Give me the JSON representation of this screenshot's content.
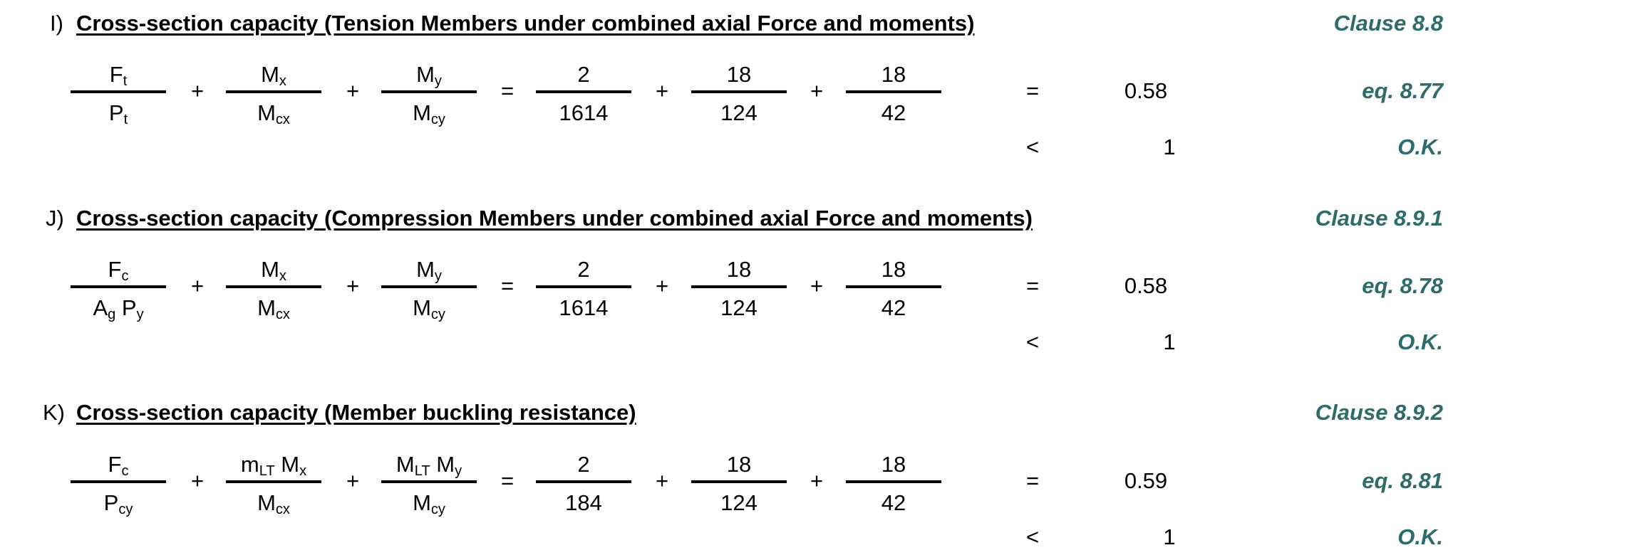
{
  "sections": [
    {
      "letter": "I)",
      "title": "Cross-section capacity (Tension Members under combined axial Force and moments)",
      "clause": "Clause 8.8",
      "equation_ref": "eq. 8.77",
      "result": "0.58",
      "comparator": "<",
      "limit": "1",
      "status": "O.K.",
      "terms": [
        {
          "num": "F",
          "num_sub": "t",
          "den": "P",
          "den_sub": "t"
        },
        {
          "num": "M",
          "num_sub": "x",
          "den": "M",
          "den_sub": "cx"
        },
        {
          "num": "M",
          "num_sub": "y",
          "den": "M",
          "den_sub": "cy"
        }
      ],
      "values": [
        {
          "num": "2",
          "den": "1614"
        },
        {
          "num": "18",
          "den": "124"
        },
        {
          "num": "18",
          "den": "42"
        }
      ]
    },
    {
      "letter": "J)",
      "title": "Cross-section capacity (Compression Members under combined axial Force and moments)",
      "clause": "Clause 8.9.1",
      "equation_ref": "eq. 8.78",
      "result": "0.58",
      "comparator": "<",
      "limit": "1",
      "status": "O.K.",
      "terms": [
        {
          "num": "F",
          "num_sub": "c",
          "den_a": "A",
          "den_a_sub": "g",
          "den_b": "P",
          "den_b_sub": "y"
        },
        {
          "num": "M",
          "num_sub": "x",
          "den": "M",
          "den_sub": "cx"
        },
        {
          "num": "M",
          "num_sub": "y",
          "den": "M",
          "den_sub": "cy"
        }
      ],
      "values": [
        {
          "num": "2",
          "den": "1614"
        },
        {
          "num": "18",
          "den": "124"
        },
        {
          "num": "18",
          "den": "42"
        }
      ]
    },
    {
      "letter": "K)",
      "title": "Cross-section capacity (Member buckling resistance)",
      "clause": "Clause 8.9.2",
      "equation_ref": "eq. 8.81",
      "result": "0.59",
      "comparator": "<",
      "limit": "1",
      "status": "O.K.",
      "terms": [
        {
          "num": "F",
          "num_sub": "c",
          "den": "P",
          "den_sub": "cy"
        },
        {
          "num_a": "m",
          "num_a_sub": "LT",
          "num_b": "M",
          "num_b_sub": "x",
          "den": "M",
          "den_sub": "cx"
        },
        {
          "num_a": "M",
          "num_a_sub": "LT",
          "num_b": "M",
          "num_b_sub": "y",
          "den": "M",
          "den_sub": "cy"
        }
      ],
      "values": [
        {
          "num": "2",
          "den": "184"
        },
        {
          "num": "18",
          "den": "124"
        },
        {
          "num": "18",
          "den": "42"
        }
      ]
    }
  ],
  "operators": {
    "plus": "+",
    "equals": "="
  },
  "colors": {
    "clause": "#2e6b6b"
  }
}
